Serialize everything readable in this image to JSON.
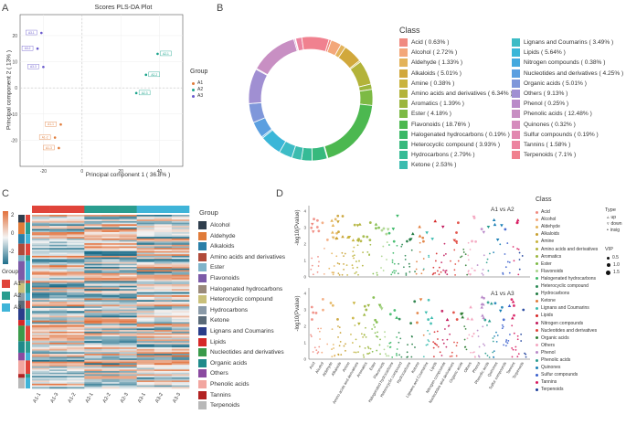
{
  "panels": {
    "A": "A",
    "B": "B",
    "C": "C",
    "D": "D"
  },
  "plsda": {
    "title": "Scores PLS-DA Plot",
    "xlabel": "Principal component 1 ( 36.8% )",
    "ylabel": "Principal component 2 ( 13% )",
    "xticks": [
      "-20",
      "0",
      "20",
      "40"
    ],
    "yticks": [
      "20",
      "10",
      "0",
      "-10",
      "-20"
    ],
    "legend_title": "Group",
    "groups": [
      {
        "name": "A1",
        "color": "#e07b39"
      },
      {
        "name": "A2",
        "color": "#1aa38b"
      },
      {
        "name": "A3",
        "color": "#6a5acd"
      }
    ],
    "point_labels": {
      "a1": "A1",
      "a2": "A2",
      "a3": "A3"
    }
  },
  "chart_data": [
    {
      "type": "scatter",
      "title": "Scores PLS-DA Plot",
      "xlabel": "Principal component 1 ( 36.8% )",
      "ylabel": "Principal component 2 ( 13% )",
      "xlim": [
        -32,
        52
      ],
      "ylim": [
        -30,
        28
      ],
      "series": [
        {
          "name": "A1",
          "color": "#e07b39",
          "points": [
            [
              -11,
              -14
            ],
            [
              -14,
              -19
            ],
            [
              -12,
              -23
            ]
          ]
        },
        {
          "name": "A2",
          "color": "#1aa38b",
          "points": [
            [
              39,
              13
            ],
            [
              33,
              5
            ],
            [
              28,
              -2
            ]
          ]
        },
        {
          "name": "A3",
          "color": "#6a5acd",
          "points": [
            [
              -21,
              21
            ],
            [
              -23,
              15
            ],
            [
              -20,
              8
            ]
          ]
        }
      ]
    },
    {
      "type": "pie",
      "title": "Class",
      "slices": [
        {
          "label": "Acid ( 0.63% )",
          "value": 0.63,
          "color": "#f08a80"
        },
        {
          "label": "Alcohol ( 2.72% )",
          "value": 2.72,
          "color": "#f3a77a"
        },
        {
          "label": "Aldehyde ( 1.33% )",
          "value": 1.33,
          "color": "#e3b35a"
        },
        {
          "label": "Alkaloids ( 5.01% )",
          "value": 5.01,
          "color": "#d1a83c"
        },
        {
          "label": "Amine ( 0.38% )",
          "value": 0.38,
          "color": "#c9b33d"
        },
        {
          "label": "Amino acids and derivatives ( 6.34% )",
          "value": 6.34,
          "color": "#b3b33a"
        },
        {
          "label": "Aromatics ( 1.39% )",
          "value": 1.39,
          "color": "#9cb63e"
        },
        {
          "label": "Ester ( 4.18% )",
          "value": 4.18,
          "color": "#7dba45"
        },
        {
          "label": "Flavonoids ( 18.76% )",
          "value": 18.76,
          "color": "#4cb850"
        },
        {
          "label": "Halogenated hydrocarbons ( 0.19% )",
          "value": 0.19,
          "color": "#3ab866"
        },
        {
          "label": "Heterocyclic compound ( 3.93% )",
          "value": 3.93,
          "color": "#37b97d"
        },
        {
          "label": "Hydrocarbons ( 2.79% )",
          "value": 2.79,
          "color": "#36bb96"
        },
        {
          "label": "Ketone ( 2.53% )",
          "value": 2.53,
          "color": "#3bbcaf"
        },
        {
          "label": "Lignans and Coumarins ( 3.49% )",
          "value": 3.49,
          "color": "#3dbcc6"
        },
        {
          "label": "Lipids ( 5.64% )",
          "value": 5.64,
          "color": "#3ab6d8"
        },
        {
          "label": "Nitrogen compounds ( 0.38% )",
          "value": 0.38,
          "color": "#45a9de"
        },
        {
          "label": "Nucleotides and derivatives ( 4.25% )",
          "value": 4.25,
          "color": "#5b9fe0"
        },
        {
          "label": "Organic acids ( 5.01% )",
          "value": 5.01,
          "color": "#7f97da"
        },
        {
          "label": "Others ( 9.13% )",
          "value": 9.13,
          "color": "#a08fd2"
        },
        {
          "label": "Phenol ( 0.25% )",
          "value": 0.25,
          "color": "#b98ac9"
        },
        {
          "label": "Phenolic acids ( 12.48% )",
          "value": 12.48,
          "color": "#c88fc3"
        },
        {
          "label": "Quinones ( 0.32% )",
          "value": 0.32,
          "color": "#d58cbd"
        },
        {
          "label": "Sulfur compounds ( 0.19% )",
          "value": 0.19,
          "color": "#e288b0"
        },
        {
          "label": "Tannins ( 1.58% )",
          "value": 1.58,
          "color": "#ec84a0"
        },
        {
          "label": "Terpenoids ( 7.1% )",
          "value": 7.1,
          "color": "#f0818f"
        }
      ]
    }
  ],
  "heatmap": {
    "scale_ticks": [
      "2",
      "0",
      "-2"
    ],
    "group_title": "Group",
    "groups": [
      {
        "name": "A1",
        "color": "#e0443a"
      },
      {
        "name": "A2",
        "color": "#2a9d8f"
      },
      {
        "name": "A3",
        "color": "#3fb4d8"
      }
    ],
    "samples": [
      "A1-1",
      "A1-3",
      "A1-2",
      "A2-1",
      "A2-2",
      "A2-3",
      "A3-1",
      "A3-2",
      "A3-3"
    ],
    "class_title": "Group",
    "classes": [
      {
        "name": "Alcohol",
        "color": "#2f3e4d"
      },
      {
        "name": "Aldehyde",
        "color": "#e07b39"
      },
      {
        "name": "Alkaloids",
        "color": "#2a7fa8"
      },
      {
        "name": "Amino acids and derivatives",
        "color": "#b04a3a"
      },
      {
        "name": "Ester",
        "color": "#7fb3c9"
      },
      {
        "name": "Flavonoids",
        "color": "#7c5ba8"
      },
      {
        "name": "Halogenated hydrocarbons",
        "color": "#9a8a7a"
      },
      {
        "name": "Heterocyclic compound",
        "color": "#c9c07a"
      },
      {
        "name": "Hydrocarbons",
        "color": "#8a9aa8"
      },
      {
        "name": "Ketone",
        "color": "#5a6a78"
      },
      {
        "name": "Lignans and Coumarins",
        "color": "#2a3d8a"
      },
      {
        "name": "Lipids",
        "color": "#d62828"
      },
      {
        "name": "Nucleotides and derivatives",
        "color": "#3a9a4a"
      },
      {
        "name": "Organic acids",
        "color": "#1f8a8a"
      },
      {
        "name": "Others",
        "color": "#8a4aa0"
      },
      {
        "name": "Phenolic acids",
        "color": "#f2a6a0"
      },
      {
        "name": "Tannins",
        "color": "#b22222"
      },
      {
        "name": "Terpenoids",
        "color": "#b8b8b8"
      }
    ]
  },
  "manhattan": {
    "ylabel": "-log10(Pvalue)",
    "top_title": "A1 vs A2",
    "bottom_title": "A1 vs A3",
    "top_yticks": [
      "4",
      "3",
      "2",
      "1",
      "0"
    ],
    "bottom_yticks": [
      "4",
      "3",
      "2",
      "1",
      "0"
    ],
    "xcats": [
      "Acid",
      "Alcohol",
      "Aldehyde",
      "Alkaloids",
      "Amine",
      "Amino acids and derivatives",
      "Aromatics",
      "Ester",
      "Flavonoids",
      "Halogenated hydrocarbons",
      "Heterocyclic compound",
      "Hydrocarbons",
      "Ketone",
      "Lignans and Coumarins",
      "Lipids",
      "Nitrogen compounds",
      "Nucleotides and derivatives",
      "Organic acids",
      "Others",
      "Phenol",
      "Phenolic acids",
      "Quinones",
      "Sulfur compounds",
      "Tannins",
      "Terpenoids"
    ],
    "class_title": "Class",
    "classes": [
      {
        "name": "Acid",
        "color": "#f08a80"
      },
      {
        "name": "Alcohol",
        "color": "#f3a77a"
      },
      {
        "name": "Aldehyde",
        "color": "#e3b35a"
      },
      {
        "name": "Alkaloids",
        "color": "#c8a030"
      },
      {
        "name": "Amine",
        "color": "#c9b33d"
      },
      {
        "name": "Amino acids and derivatives",
        "color": "#b3b33a"
      },
      {
        "name": "Aromatics",
        "color": "#9cb63e"
      },
      {
        "name": "Ester",
        "color": "#7dba45"
      },
      {
        "name": "Flavonoids",
        "color": "#a8d48a"
      },
      {
        "name": "Halogenated hydrocarbons",
        "color": "#3ab866"
      },
      {
        "name": "Heterocyclic compound",
        "color": "#2e8b57"
      },
      {
        "name": "Hydrocarbons",
        "color": "#1f7a40"
      },
      {
        "name": "Ketone",
        "color": "#e07b39"
      },
      {
        "name": "Lignans and Coumarins",
        "color": "#3bbcaf"
      },
      {
        "name": "Lipids",
        "color": "#d62828"
      },
      {
        "name": "Nitrogen compounds",
        "color": "#c2185b"
      },
      {
        "name": "Nucleotides and derivatives",
        "color": "#e0443a"
      },
      {
        "name": "Organic acids",
        "color": "#2e7d32"
      },
      {
        "name": "Others",
        "color": "#f4a6c0"
      },
      {
        "name": "Phenol",
        "color": "#b98ac9"
      },
      {
        "name": "Phenolic acids",
        "color": "#2a9d8f"
      },
      {
        "name": "Quinones",
        "color": "#1a7fb5"
      },
      {
        "name": "Sulfur compounds",
        "color": "#3a5fcd"
      },
      {
        "name": "Tannins",
        "color": "#d81b60"
      },
      {
        "name": "Terpenoids",
        "color": "#1a3d9a"
      }
    ],
    "type_title": "Type",
    "types": [
      "up",
      "down",
      "insig"
    ],
    "vip_title": "VIP",
    "vip_values": [
      "0.5",
      "1.0",
      "1.5"
    ]
  }
}
